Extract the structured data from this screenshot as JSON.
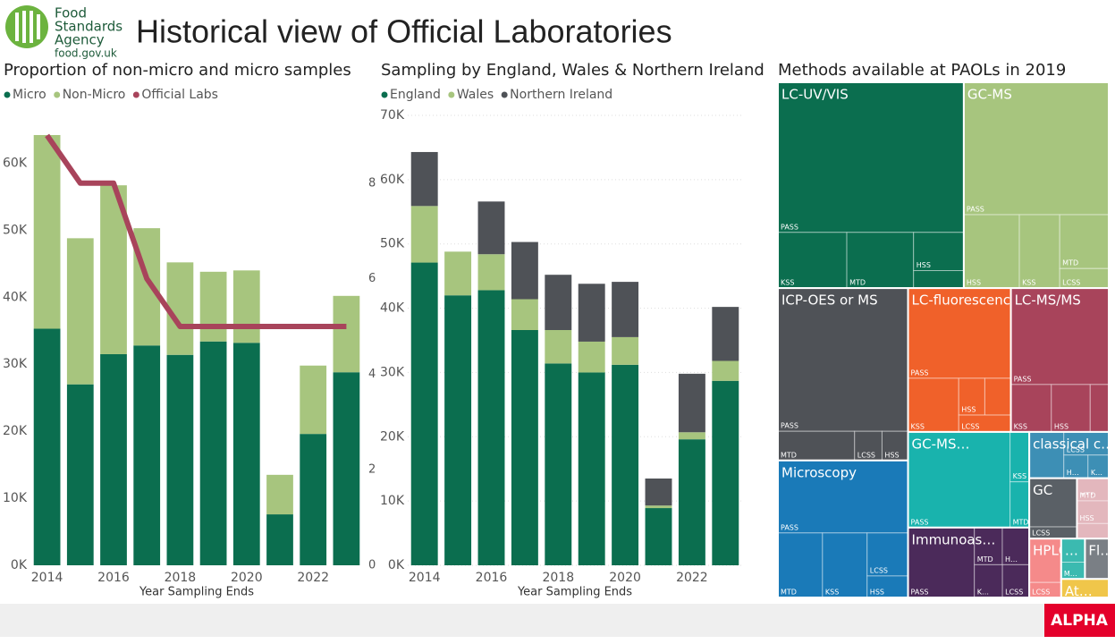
{
  "header": {
    "logo_lines": [
      "Food",
      "Standards",
      "Agency"
    ],
    "logo_url": "food.gov.uk",
    "title": "Historical view of Official Laboratories"
  },
  "footer": {
    "badge": "ALPHA"
  },
  "chart_data": [
    {
      "type": "bar",
      "stacked": true,
      "title": "Proportion of non-micro and micro samples",
      "xlabel": "Year Sampling Ends",
      "x": [
        2014,
        2015,
        2016,
        2017,
        2018,
        2019,
        2020,
        2021,
        2022,
        2023
      ],
      "xlim": [
        2013.5,
        2023.5
      ],
      "xticks": [
        2014,
        2016,
        2018,
        2020,
        2022
      ],
      "ylim": [
        0,
        67000
      ],
      "yticks": [
        {
          "value": 0,
          "label": "0K"
        },
        {
          "value": 10000,
          "label": "10K"
        },
        {
          "value": 20000,
          "label": "20K"
        },
        {
          "value": 30000,
          "label": "30K"
        },
        {
          "value": 40000,
          "label": "40K"
        },
        {
          "value": 50000,
          "label": "50K"
        },
        {
          "value": 60000,
          "label": "60K"
        }
      ],
      "y2lim": [
        0,
        9.4
      ],
      "y2ticks": [
        0,
        2,
        4,
        6,
        8
      ],
      "grid": false,
      "legend": "top-left",
      "series": [
        {
          "name": "Micro",
          "color": "#0b6e4f",
          "values": [
            35300,
            27000,
            31500,
            32800,
            31400,
            33400,
            33200,
            7600,
            19600,
            28800
          ]
        },
        {
          "name": "Non-Micro",
          "color": "#a7c57e",
          "values": [
            28900,
            21800,
            25200,
            17500,
            13800,
            10400,
            10800,
            5900,
            10200,
            11400
          ]
        },
        {
          "name": "Official Labs",
          "color": "#a8445b",
          "type": "line",
          "axis": "y2",
          "values": [
            9,
            8,
            8,
            6,
            5,
            5,
            5,
            5,
            5,
            5
          ]
        }
      ]
    },
    {
      "type": "bar",
      "stacked": true,
      "title": "Sampling by England, Wales & Northern Ireland",
      "xlabel": "Year Sampling Ends",
      "x": [
        2014,
        2015,
        2016,
        2017,
        2018,
        2019,
        2020,
        2021,
        2022,
        2023
      ],
      "xlim": [
        2013.5,
        2023.5
      ],
      "xticks": [
        2014,
        2016,
        2018,
        2020,
        2022
      ],
      "ylim": [
        0,
        70000
      ],
      "yticks": [
        {
          "value": 0,
          "label": "0K"
        },
        {
          "value": 10000,
          "label": "10K"
        },
        {
          "value": 20000,
          "label": "20K"
        },
        {
          "value": 30000,
          "label": "30K"
        },
        {
          "value": 40000,
          "label": "40K"
        },
        {
          "value": 50000,
          "label": "50K"
        },
        {
          "value": 60000,
          "label": "60K"
        },
        {
          "value": 70000,
          "label": "70K"
        }
      ],
      "grid": true,
      "legend": "top-left",
      "series": [
        {
          "name": "England",
          "color": "#0b6e4f",
          "values": [
            47100,
            42000,
            42800,
            36600,
            31400,
            30000,
            31200,
            8900,
            19600,
            28700
          ]
        },
        {
          "name": "Wales",
          "color": "#a7c57e",
          "values": [
            8800,
            6800,
            5600,
            4800,
            5200,
            4800,
            4300,
            400,
            1100,
            3100
          ]
        },
        {
          "name": "Northern Ireland",
          "color": "#4f5257",
          "values": [
            8400,
            0,
            8200,
            8900,
            8600,
            9000,
            8600,
            4200,
            9100,
            8400
          ]
        }
      ]
    },
    {
      "type": "treemap",
      "title": "Methods available at PAOLs in 2019",
      "items": [
        {
          "name": "LC-UV/VIS",
          "color": "#0b6e4f",
          "children": [
            {
              "name": "PASS",
              "value": 34.9
            },
            {
              "name": "KSS",
              "value": 4.8
            },
            {
              "name": "MTD",
              "value": 4.65
            },
            {
              "name": "HSS",
              "value": 2.4
            },
            {
              "name": null,
              "value": 1.1
            }
          ]
        },
        {
          "name": "GC-MS",
          "color": "#a7c57e",
          "children": [
            {
              "name": "PASS",
              "value": 24
            },
            {
              "name": "HSS",
              "value": 5.1
            },
            {
              "name": "KSS",
              "value": 3.7
            },
            {
              "name": "MTD",
              "value": 3.3
            },
            {
              "name": "LCSS",
              "value": 1.2
            }
          ]
        },
        {
          "name": "ICP-OES or MS",
          "color": "#4f5257",
          "children": [
            {
              "name": "PASS",
              "value": 23.3
            },
            {
              "name": "MTD",
              "value": 2.8
            },
            {
              "name": "LCSS",
              "value": 1.0
            },
            {
              "name": "HSS",
              "value": 0.95
            }
          ]
        },
        {
          "name": "Microscopy",
          "color": "#1a7ab8",
          "children": [
            {
              "name": "PASS",
              "value": 11.8
            },
            {
              "name": "MTD",
              "value": 3.6
            },
            {
              "name": "KSS",
              "value": 3.6
            },
            {
              "name": "LCSS",
              "value": 2.2
            },
            {
              "name": "HSS",
              "value": 1.1
            }
          ]
        },
        {
          "name": "LC-fluorescence",
          "color": "#f0612a",
          "children": [
            {
              "name": "PASS",
              "value": 11.6
            },
            {
              "name": "KSS",
              "value": 3.4
            },
            {
              "name": "HSS",
              "value": 1.2
            },
            {
              "name": null,
              "value": 1.2
            },
            {
              "name": "LCSS",
              "value": 1.1
            }
          ]
        },
        {
          "name": "LC-MS/MS",
          "color": "#a8445b",
          "children": [
            {
              "name": "PASS",
              "value": 11.8
            },
            {
              "name": "KSS",
              "value": 2.4
            },
            {
              "name": "HSS",
              "value": 2.3
            },
            {
              "name": null,
              "value": 1.1
            }
          ]
        },
        {
          "name": "GC-MS…",
          "color": "#19b3ad",
          "children": [
            {
              "name": "PASS",
              "value": 12.2
            },
            {
              "name": "KSS",
              "value": 1.2
            },
            {
              "name": "MTD",
              "value": 1.1
            }
          ]
        },
        {
          "name": "Immunoas…",
          "color": "#4b2a5a",
          "children": [
            {
              "name": "PASS",
              "value": 5.8
            },
            {
              "name": "MTD",
              "value": 1.3
            },
            {
              "name": "H…",
              "value": 1.25
            },
            {
              "name": "K…",
              "value": 1.15
            },
            {
              "name": "LCSS",
              "value": 1.1
            }
          ]
        },
        {
          "name": "classical c…",
          "color": "#3d8fb5",
          "children": [
            {
              "name": null,
              "value": 2.0
            },
            {
              "name": "LCSS",
              "value": 1.3
            },
            {
              "name": "H…",
              "value": 0.7
            },
            {
              "name": "K…",
              "value": 0.6
            }
          ]
        },
        {
          "name": "GC",
          "color": "#5a6066",
          "children": [
            {
              "name": null,
              "value": 2.9
            },
            {
              "name": "LCSS",
              "value": 0.7
            }
          ]
        },
        {
          "name": "…",
          "color": "#e3b7bd",
          "children": [
            {
              "name": "MTD",
              "value": 0.9
            },
            {
              "name": "HSS",
              "value": 0.9
            },
            {
              "name": null,
              "value": 0.6
            }
          ]
        },
        {
          "name": "HPLC",
          "color": "#f58a8a",
          "children": [
            {
              "name": null,
              "value": 1.75
            },
            {
              "name": "LCSS",
              "value": 0.6
            }
          ]
        },
        {
          "name": "…",
          "color": "#3bbab0",
          "children": [
            {
              "name": null,
              "value": 0.7
            },
            {
              "name": "M…",
              "value": 0.5
            }
          ]
        },
        {
          "name": "Fl…",
          "color": "#7a7f85",
          "value": 1.2
        },
        {
          "name": "At…",
          "color": "#f0c64a",
          "value": 1.1
        }
      ]
    }
  ]
}
